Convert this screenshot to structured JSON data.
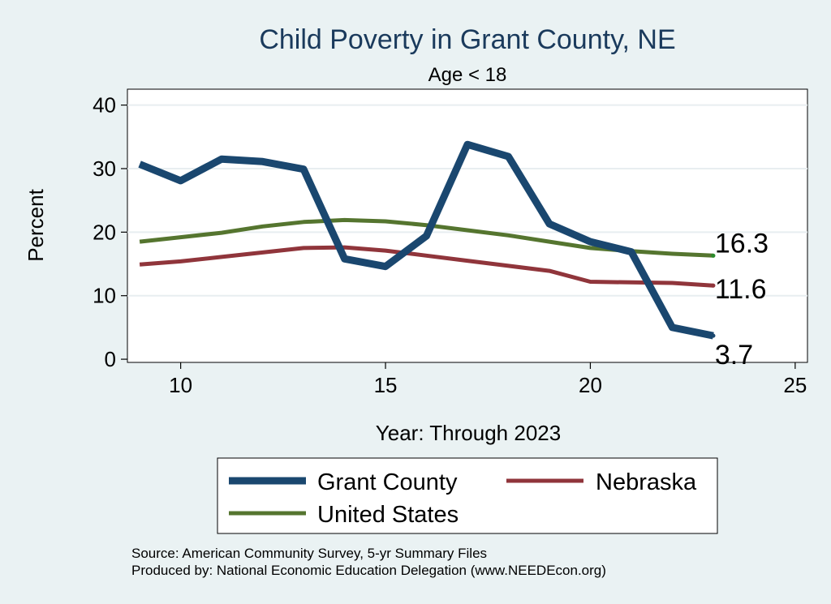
{
  "chart_data": {
    "type": "line",
    "title": "Child Poverty in Grant County, NE",
    "subtitle": "Age < 18",
    "xlabel": "Year: Through 2023",
    "ylabel": "Percent",
    "xlim": [
      8.7,
      25.3
    ],
    "ylim": [
      -0.5,
      42.5
    ],
    "xticks": [
      10,
      15,
      20,
      25
    ],
    "yticks": [
      0,
      10,
      20,
      30,
      40
    ],
    "grid": true,
    "legend_position": "bottom",
    "x": [
      9,
      10,
      11,
      12,
      13,
      14,
      15,
      16,
      17,
      18,
      19,
      20,
      21,
      22,
      23
    ],
    "series": [
      {
        "name": "Grant County",
        "color": "#1a476f",
        "values": [
          30.7,
          28.1,
          31.5,
          31.1,
          29.9,
          15.8,
          14.6,
          19.4,
          33.8,
          31.9,
          21.3,
          18.5,
          16.9,
          5.0,
          3.7
        ],
        "end_label": "3.7"
      },
      {
        "name": "Nebraska",
        "color": "#90353b",
        "values": [
          14.9,
          15.4,
          16.1,
          16.8,
          17.5,
          17.6,
          17.1,
          16.3,
          15.5,
          14.7,
          13.9,
          12.2,
          12.1,
          12.0,
          11.6
        ],
        "end_label": "11.6"
      },
      {
        "name": "United States",
        "color": "#55752f",
        "values": [
          18.5,
          19.2,
          19.9,
          20.9,
          21.6,
          21.9,
          21.7,
          21.1,
          20.3,
          19.5,
          18.5,
          17.5,
          17.0,
          16.6,
          16.3
        ],
        "end_label": "16.3"
      }
    ],
    "notes": [
      "Source: American Community Survey, 5-yr Summary Files",
      "Produced by: National Economic Education Delegation (www.NEEDEcon.org)"
    ]
  }
}
